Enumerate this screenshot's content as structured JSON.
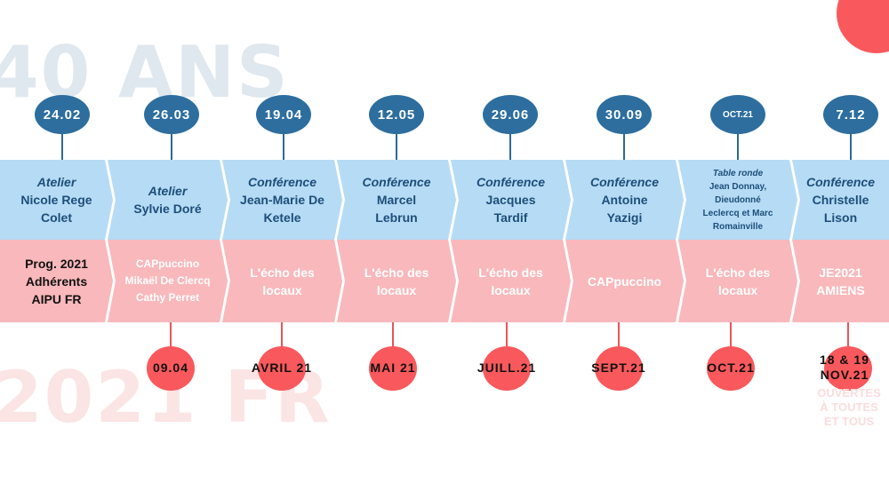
{
  "background": {
    "top_text": "40 ANS",
    "bottom_text": "2021 FR"
  },
  "colors": {
    "blue_band": "#b6dbf5",
    "pink_band": "#f9b8bb",
    "top_circle": "#2d6e9f",
    "bottom_circle": "#f9595c",
    "blue_text": "#1d4e7a"
  },
  "top_dates": [
    "24.02",
    "26.03",
    "19.04",
    "12.05",
    "29.06",
    "30.09",
    "OCT.21",
    "7.12"
  ],
  "events": [
    {
      "kind": "Atelier",
      "who": [
        "Nicole Rege",
        "Colet"
      ]
    },
    {
      "kind": "Atelier",
      "who": [
        "Sylvie Doré"
      ]
    },
    {
      "kind": "Conférence",
      "who": [
        "Jean-Marie De",
        "Ketele"
      ]
    },
    {
      "kind": "Conférence",
      "who": [
        "Marcel",
        "Lebrun"
      ]
    },
    {
      "kind": "Conférence",
      "who": [
        "Jacques",
        "Tardif"
      ]
    },
    {
      "kind": "Conférence",
      "who": [
        "Antoine",
        "Yazigi"
      ]
    },
    {
      "kind": "Table ronde",
      "who": [
        "Jean Donnay,",
        "Dieudonné",
        "Leclercq et Marc",
        "Romainville"
      ]
    },
    {
      "kind": "Conférence",
      "who": [
        "Christelle",
        "Lison"
      ]
    }
  ],
  "programs": [
    [
      "Prog. 2021",
      "Adhérents",
      "AIPU FR"
    ],
    [
      "CAPpuccino",
      "Mikaël De Clercq",
      "Cathy Perret"
    ],
    [
      "L'écho des",
      "locaux"
    ],
    [
      "L'écho des",
      "locaux"
    ],
    [
      "L'écho des",
      "locaux"
    ],
    [
      "CAPpuccino"
    ],
    [
      "L'écho des",
      "locaux"
    ],
    [
      "JE2021",
      "AMIENS"
    ]
  ],
  "bottom_dates": [
    "09.04",
    "AVRIL 21",
    "MAI 21",
    "JUILL.21",
    "SEPT.21",
    "OCT.21",
    [
      "18 & 19",
      "NOV.21"
    ]
  ],
  "open_note": [
    "OUVERTES",
    "À TOUTES",
    "ET TOUS"
  ]
}
